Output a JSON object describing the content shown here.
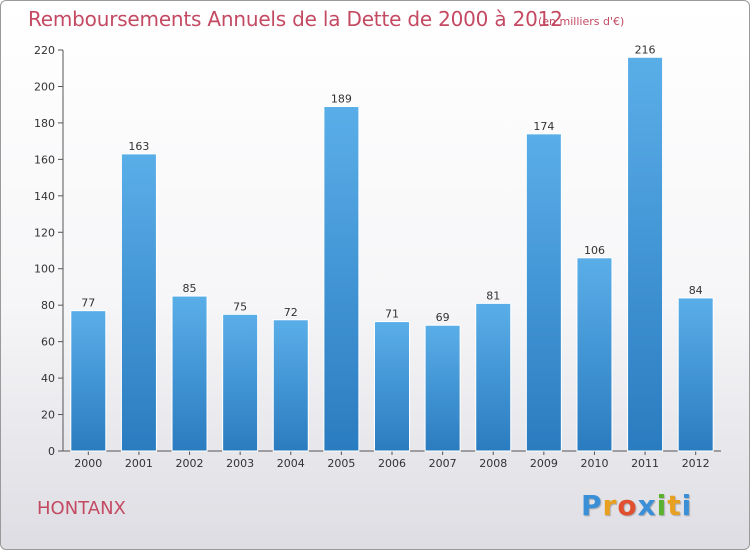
{
  "chart_data": {
    "type": "bar",
    "title": "Remboursements Annuels de la Dette de 2000 à 2012",
    "subtitle": "(en milliers d'€)",
    "categories": [
      "2000",
      "2001",
      "2002",
      "2003",
      "2004",
      "2005",
      "2006",
      "2007",
      "2008",
      "2009",
      "2010",
      "2011",
      "2012"
    ],
    "values": [
      77,
      163,
      85,
      75,
      72,
      189,
      71,
      69,
      81,
      174,
      106,
      216,
      84
    ],
    "ylim": [
      0,
      220
    ],
    "yticks": [
      0,
      20,
      40,
      60,
      80,
      100,
      120,
      140,
      160,
      180,
      200,
      220
    ],
    "grid": false,
    "colors": {
      "bar_top": "#5aaee8",
      "bar_bottom": "#2a7cc0",
      "title": "#c44a63"
    }
  },
  "commune": "HONTANX",
  "logo": {
    "letters": [
      "P",
      "r",
      "o",
      "x",
      "i",
      "t",
      "i"
    ],
    "colors": [
      "#3a8fd6",
      "#e8a020",
      "#e05030",
      "#3a8fd6",
      "#5bb030",
      "#e8a020",
      "#3a8fd6"
    ]
  }
}
